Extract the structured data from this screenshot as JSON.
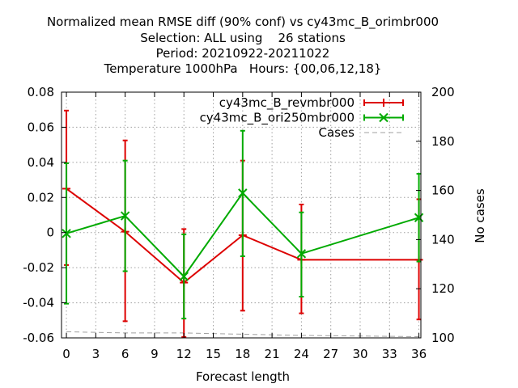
{
  "chart_data": {
    "type": "line",
    "title_lines": [
      "Normalized mean RMSE diff (90% conf) vs cy43mc_B_orimbr000",
      "Selection: ALL using    26 stations",
      "Period: 20210922-20211022",
      "Temperature 1000hPa   Hours: {00,06,12,18}"
    ],
    "xlabel": "Forecast length",
    "ylabel": "",
    "y2label": "No cases",
    "xlim": [
      -0.5,
      36.2
    ],
    "ylim": [
      -0.06,
      0.08
    ],
    "y2lim": [
      100,
      200
    ],
    "xticks": [
      0,
      3,
      6,
      9,
      12,
      15,
      18,
      21,
      24,
      27,
      30,
      33,
      36
    ],
    "yticks": [
      -0.06,
      -0.04,
      -0.02,
      0,
      0.02,
      0.04,
      0.06,
      0.08
    ],
    "ytick_labels": [
      "-0.06",
      "-0.04",
      "-0.02",
      "0",
      "0.02",
      "0.04",
      "0.06",
      "0.08"
    ],
    "y2ticks": [
      100,
      120,
      140,
      160,
      180,
      200
    ],
    "grid": true,
    "legend_position": "top-right",
    "series": [
      {
        "name": "cy43mc_B_revmbr000",
        "color": "#dd0000",
        "marker": "plus",
        "x": [
          0,
          6,
          12,
          18,
          24,
          36
        ],
        "y": [
          0.025,
          0.0005,
          -0.0285,
          -0.0015,
          -0.0155,
          -0.0155
        ],
        "err_low": [
          -0.0185,
          -0.0505,
          -0.0595,
          -0.0445,
          -0.046,
          -0.0495
        ],
        "err_high": [
          0.0695,
          0.0525,
          0.002,
          0.041,
          0.016,
          0.019
        ]
      },
      {
        "name": "cy43mc_B_ori250mbr000",
        "color": "#00aa00",
        "marker": "x",
        "x": [
          0,
          6,
          12,
          18,
          24,
          36
        ],
        "y": [
          -0.0005,
          0.0095,
          -0.025,
          0.0225,
          -0.012,
          0.0085
        ],
        "err_low": [
          -0.0405,
          -0.022,
          -0.049,
          -0.0135,
          -0.0365,
          -0.0165
        ],
        "err_high": [
          0.0395,
          0.041,
          -0.001,
          0.058,
          0.0115,
          0.0335
        ]
      }
    ],
    "cases": {
      "name": "Cases",
      "color": "#a0a0a0",
      "axis": "y2",
      "x": [
        0,
        6,
        12,
        18,
        24,
        36
      ],
      "y": [
        102.5,
        102,
        102,
        101.5,
        101,
        100.5
      ]
    }
  }
}
